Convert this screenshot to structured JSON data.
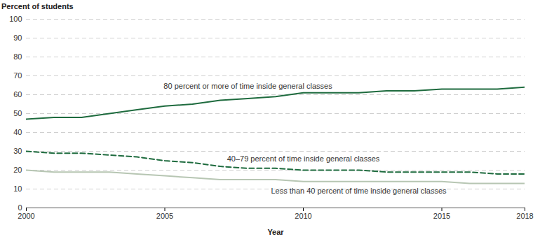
{
  "chart_data": {
    "type": "line",
    "y_label": "Percent of students",
    "x_label": "Year",
    "x": [
      2000,
      2001,
      2002,
      2003,
      2004,
      2005,
      2006,
      2007,
      2008,
      2009,
      2010,
      2011,
      2012,
      2013,
      2014,
      2015,
      2016,
      2017,
      2018
    ],
    "xlim": [
      2000,
      2018
    ],
    "xticks": [
      2000,
      2005,
      2010,
      2015,
      2018
    ],
    "ylim": [
      0,
      100
    ],
    "yticks": [
      0,
      10,
      20,
      30,
      40,
      50,
      60,
      70,
      80,
      90,
      100
    ],
    "grid": true,
    "series": [
      {
        "name": "80 percent or more of time inside general classes",
        "color": "#1e6b3e",
        "line_style": "solid",
        "values": [
          47,
          48,
          48,
          50,
          52,
          54,
          55,
          57,
          58,
          59,
          61,
          61,
          61,
          62,
          62,
          63,
          63,
          63,
          64
        ]
      },
      {
        "name": "40–79 percent of time inside general classes",
        "color": "#1e6b3e",
        "line_style": "dashed",
        "values": [
          30,
          29,
          29,
          28,
          27,
          25,
          24,
          22,
          21,
          21,
          20,
          20,
          20,
          19,
          19,
          19,
          19,
          18,
          18
        ]
      },
      {
        "name": "Less than 40 percent of time inside general classes",
        "color": "#b7c6b3",
        "line_style": "solid",
        "values": [
          20,
          19,
          19,
          19,
          18,
          17,
          16,
          15,
          15,
          15,
          14,
          14,
          14,
          14,
          14,
          14,
          13,
          13,
          13
        ]
      }
    ]
  }
}
